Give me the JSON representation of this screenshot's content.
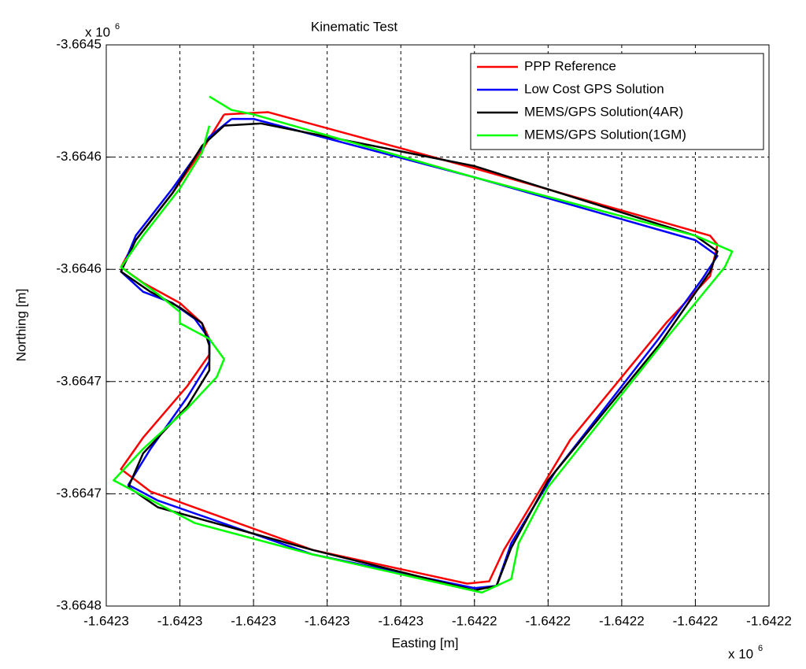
{
  "chart_data": {
    "type": "line",
    "title": "Kinematic Test",
    "x_label": "Easting [m]",
    "y_label": "Northing [m]",
    "x_multiplier": "x 10",
    "x_multiplier_exp": "6",
    "y_multiplier": "x 10",
    "y_multiplier_exp": "6",
    "xlim": [
      -1642295,
      -1642205
    ],
    "ylim": [
      -3664750,
      -3664500
    ],
    "xticks": [
      {
        "value": -1642295,
        "label": "-1.6423"
      },
      {
        "value": -1642285,
        "label": "-1.6423"
      },
      {
        "value": -1642275,
        "label": "-1.6423"
      },
      {
        "value": -1642265,
        "label": "-1.6423"
      },
      {
        "value": -1642255,
        "label": "-1.6423"
      },
      {
        "value": -1642245,
        "label": "-1.6422"
      },
      {
        "value": -1642235,
        "label": "-1.6422"
      },
      {
        "value": -1642225,
        "label": "-1.6422"
      },
      {
        "value": -1642215,
        "label": "-1.6422"
      },
      {
        "value": -1642205,
        "label": "-1.6422"
      }
    ],
    "yticks": [
      {
        "value": -3664500,
        "label": "-3.6645"
      },
      {
        "value": -3664550,
        "label": "-3.6646"
      },
      {
        "value": -3664600,
        "label": "-3.6646"
      },
      {
        "value": -3664650,
        "label": "-3.6647"
      },
      {
        "value": -3664700,
        "label": "-3.6647"
      },
      {
        "value": -3664750,
        "label": "-3.6648"
      }
    ],
    "grid": true,
    "legend": "upper right",
    "series": [
      {
        "name": "PPP Reference",
        "color": "#ff0000",
        "x": [
          -1642279,
          -1642273,
          -1642245,
          -1642213,
          -1642212,
          -1642213,
          -1642219,
          -1642232,
          -1642241,
          -1642243,
          -1642246,
          -1642267,
          -1642289,
          -1642293,
          -1642290,
          -1642284,
          -1642281,
          -1642281,
          -1642282,
          -1642285,
          -1642290,
          -1642293,
          -1642291,
          -1642286,
          -1642282,
          -1642279
        ],
        "values": [
          -3664531,
          -3664530,
          -3664555,
          -3664585,
          -3664589,
          -3664603,
          -3664624,
          -3664676,
          -3664725,
          -3664739,
          -3664740,
          -3664725,
          -3664699,
          -3664689,
          -3664675,
          -3664652,
          -3664638,
          -3664631,
          -3664624,
          -3664615,
          -3664606,
          -3664599,
          -3664587,
          -3664566,
          -3664547,
          -3664531
        ]
      },
      {
        "name": "Low Cost GPS Solution",
        "color": "#0000ff",
        "x": [
          -1642278,
          -1642275,
          -1642245,
          -1642215,
          -1642212,
          -1642214,
          -1642220,
          -1642234,
          -1642240,
          -1642242,
          -1642245,
          -1642267,
          -1642288,
          -1642292,
          -1642289,
          -1642284,
          -1642281,
          -1642281,
          -1642283,
          -1642286,
          -1642290,
          -1642293,
          -1642291,
          -1642286,
          -1642281,
          -1642278
        ],
        "values": [
          -3664533,
          -3664533,
          -3664559,
          -3664587,
          -3664594,
          -3664604,
          -3664631,
          -3664690,
          -3664722,
          -3664741,
          -3664742,
          -3664727,
          -3664703,
          -3664696,
          -3664680,
          -3664657,
          -3664641,
          -3664631,
          -3664622,
          -3664615,
          -3664610,
          -3664601,
          -3664585,
          -3664564,
          -3664541,
          -3664533
        ]
      },
      {
        "name": "MEMS/GPS Solution(4AR)",
        "color": "#000000",
        "x": [
          -1642279,
          -1642274,
          -1642245,
          -1642215,
          -1642212,
          -1642213,
          -1642220,
          -1642235,
          -1642240,
          -1642242,
          -1642245,
          -1642267,
          -1642288,
          -1642292,
          -1642290,
          -1642284,
          -1642281,
          -1642281,
          -1642282,
          -1642285,
          -1642289,
          -1642293,
          -1642291,
          -1642286,
          -1642282,
          -1642279
        ],
        "values": [
          -3664536,
          -3664535,
          -3664554,
          -3664585,
          -3664592,
          -3664601,
          -3664634,
          -3664694,
          -3664724,
          -3664741,
          -3664743,
          -3664725,
          -3664706,
          -3664697,
          -3664682,
          -3664661,
          -3664645,
          -3664634,
          -3664624,
          -3664617,
          -3664610,
          -3664601,
          -3664587,
          -3664566,
          -3664545,
          -3664536
        ]
      },
      {
        "name": "MEMS/GPS Solution(1GM)",
        "color": "#00ff00",
        "x": [
          -1642281,
          -1642278,
          -1642275,
          -1642245,
          -1642215,
          -1642210,
          -1642211,
          -1642219,
          -1642235,
          -1642239,
          -1642240,
          -1642244,
          -1642267,
          -1642283,
          -1642294,
          -1642290,
          -1642284,
          -1642280,
          -1642279,
          -1642281,
          -1642285,
          -1642285,
          -1642288,
          -1642293,
          -1642290,
          -1642285,
          -1642282,
          -1642281
        ],
        "values": [
          -3664523,
          -3664529,
          -3664531,
          -3664559,
          -3664585,
          -3664592,
          -3664599,
          -3664631,
          -3664697,
          -3664722,
          -3664738,
          -3664744,
          -3664727,
          -3664713,
          -3664694,
          -3664680,
          -3664662,
          -3664648,
          -3664640,
          -3664631,
          -3664624,
          -3664619,
          -3664611,
          -3664599,
          -3664585,
          -3664564,
          -3664548,
          -3664536
        ]
      }
    ]
  }
}
